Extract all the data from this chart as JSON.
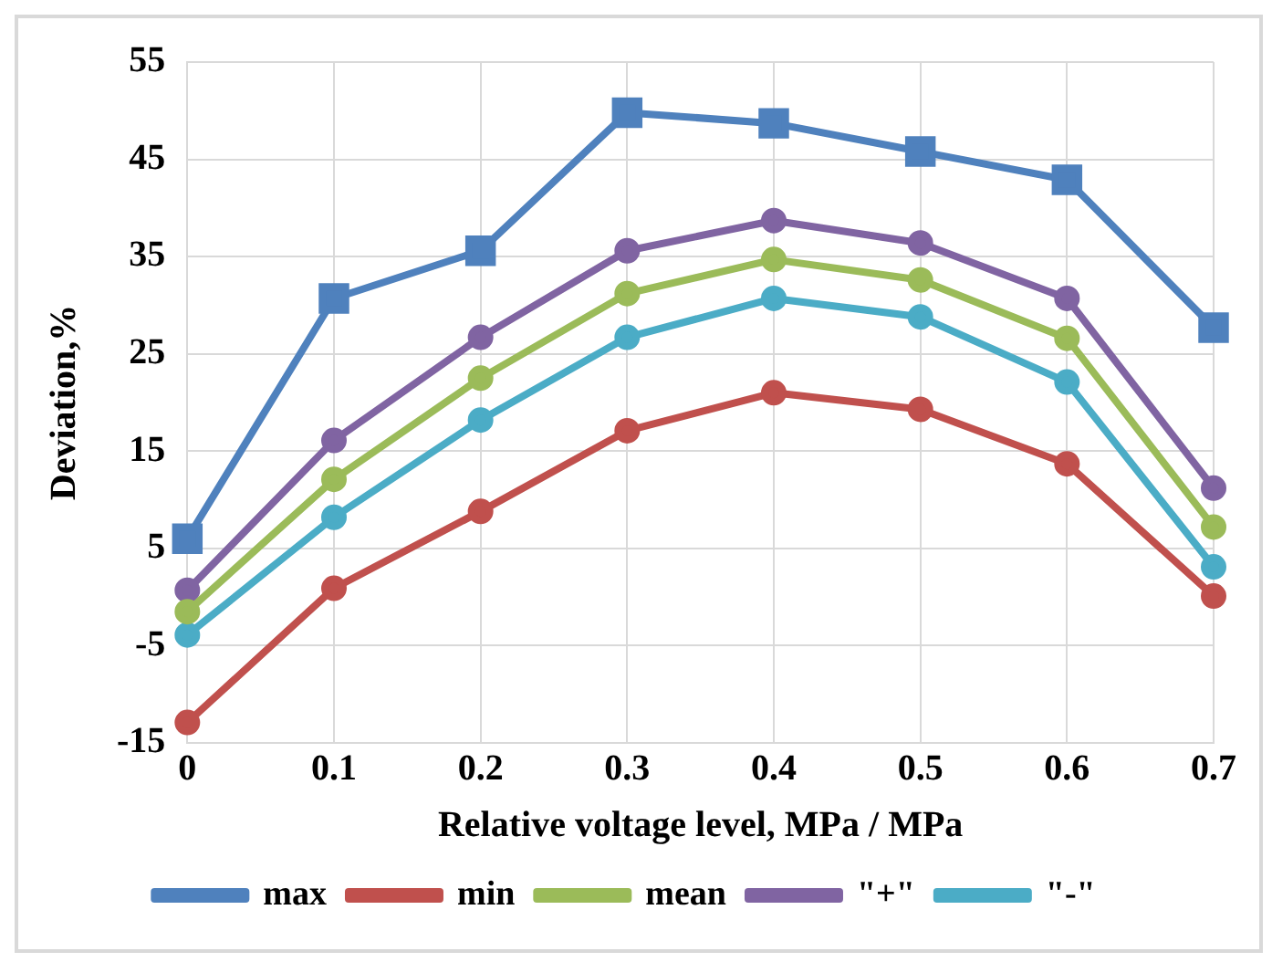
{
  "chart_data": {
    "type": "line",
    "xlabel": "Relative voltage level, MPa / MPa",
    "ylabel": "Deviation,%",
    "x": [
      0,
      0.1,
      0.2,
      0.3,
      0.4,
      0.5,
      0.6,
      0.7
    ],
    "xlim": [
      0,
      0.7
    ],
    "xticks": [
      0,
      0.1,
      0.2,
      0.3,
      0.4,
      0.5,
      0.6,
      0.7
    ],
    "ylim": [
      -15,
      55
    ],
    "yticks": [
      -15,
      -5,
      5,
      15,
      25,
      35,
      45,
      55
    ],
    "grid": true,
    "legend": "bottom",
    "marker": "circle",
    "line_style": "solid",
    "series": [
      {
        "name": "max",
        "color": "#4f81bd",
        "marker": "square",
        "values": [
          6,
          30.7,
          35.6,
          49.8,
          48.7,
          45.8,
          42.9,
          27.7
        ]
      },
      {
        "name": "min",
        "color": "#c0504d",
        "values": [
          -12.9,
          0.9,
          8.8,
          17.1,
          21,
          19.3,
          13.7,
          0.1
        ]
      },
      {
        "name": "mean",
        "color": "#9bbb59",
        "values": [
          -1.5,
          12.1,
          22.5,
          31.2,
          34.7,
          32.6,
          26.6,
          7.2
        ]
      },
      {
        "name": "\"+\"",
        "color": "#8064a2",
        "values": [
          0.7,
          16.1,
          26.7,
          35.6,
          38.7,
          36.4,
          30.7,
          11.2
        ]
      },
      {
        "name": "\"-\"",
        "color": "#4bacc6",
        "values": [
          -3.9,
          8.2,
          18.2,
          26.7,
          30.7,
          28.8,
          22.1,
          3.1
        ]
      }
    ]
  }
}
